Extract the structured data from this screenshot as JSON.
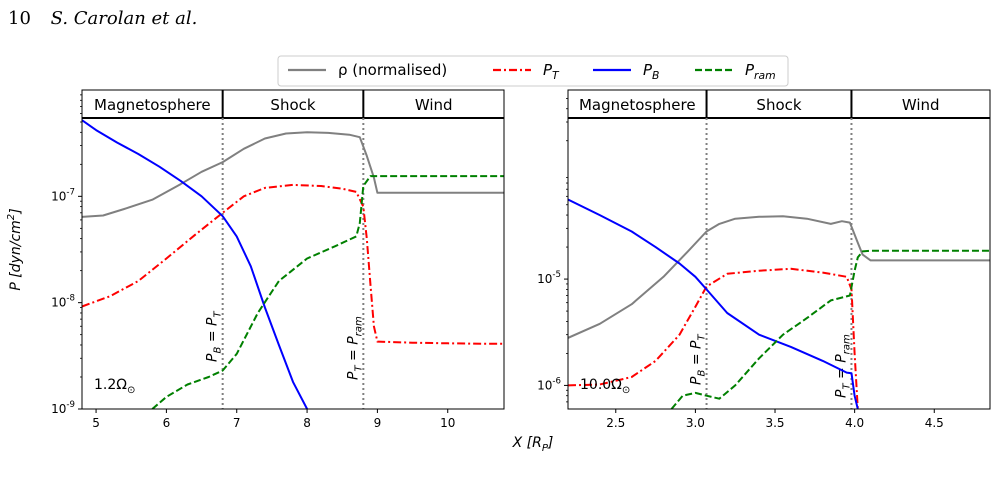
{
  "header": {
    "page_number": "10",
    "authors": "S. Carolan et al."
  },
  "x_axis_label": "X [R_P]",
  "legend": [
    {
      "key": "rho",
      "label": "ρ (normalised)",
      "color": "#808080",
      "dash": "solid"
    },
    {
      "key": "PT",
      "label": "P_T",
      "color": "#ff0000",
      "dash": "dashdot"
    },
    {
      "key": "PB",
      "label": "P_B",
      "color": "#0000ff",
      "dash": "solid"
    },
    {
      "key": "Pram",
      "label": "P_ram",
      "color": "#008000",
      "dash": "dashed"
    }
  ],
  "chart_data": [
    {
      "type": "line",
      "ylabel": "P [dyn/cm^2]",
      "ylog": true,
      "xlim": [
        4.8,
        10.8
      ],
      "ylim": [
        1e-09,
        1e-06
      ],
      "xticks": [
        5,
        6,
        7,
        8,
        9,
        10
      ],
      "yticks": [
        {
          "value": 1e-09,
          "label": "10^-9"
        },
        {
          "value": 1e-08,
          "label": "10^-8"
        },
        {
          "value": 1e-07,
          "label": "10^-7"
        }
      ],
      "regions": [
        {
          "label": "Magnetosphere",
          "from": 4.8,
          "to": 6.8
        },
        {
          "label": "Shock",
          "from": 6.8,
          "to": 8.8
        },
        {
          "label": "Wind",
          "from": 8.8,
          "to": 10.8
        }
      ],
      "vlines": [
        {
          "x": 6.8,
          "label": "P_B = P_T"
        },
        {
          "x": 8.8,
          "label": "P_T = P_ram"
        }
      ],
      "annotation": "1.2Ω_⊙",
      "series": [
        {
          "key": "rho",
          "x": [
            4.8,
            5.1,
            5.4,
            5.8,
            6.2,
            6.5,
            6.8,
            7.1,
            7.4,
            7.7,
            8.0,
            8.3,
            8.6,
            8.75,
            8.85,
            8.95,
            9.0,
            9.5,
            10.0,
            10.5,
            10.8
          ],
          "y": [
            6.4e-08,
            6.6e-08,
            7.6e-08,
            9.3e-08,
            1.3e-07,
            1.7e-07,
            2.1e-07,
            2.8e-07,
            3.5e-07,
            3.9e-07,
            4e-07,
            3.95e-07,
            3.8e-07,
            3.6e-07,
            2.4e-07,
            1.5e-07,
            1.08e-07,
            1.08e-07,
            1.08e-07,
            1.08e-07,
            1.08e-07
          ]
        },
        {
          "key": "PT",
          "x": [
            4.8,
            5.2,
            5.6,
            6.0,
            6.4,
            6.8,
            7.1,
            7.4,
            7.8,
            8.2,
            8.5,
            8.7,
            8.8,
            8.85,
            8.9,
            8.95,
            9.0,
            9.5,
            10.0,
            10.5,
            10.8
          ],
          "y": [
            9.2e-09,
            1.15e-08,
            1.6e-08,
            2.6e-08,
            4.3e-08,
            7e-08,
            1e-07,
            1.2e-07,
            1.28e-07,
            1.25e-07,
            1.18e-07,
            1.1e-07,
            8e-08,
            4e-08,
            1.5e-08,
            6e-09,
            4.3e-09,
            4.2e-09,
            4.15e-09,
            4.1e-09,
            4.1e-09
          ]
        },
        {
          "key": "PB",
          "x": [
            4.8,
            5.0,
            5.3,
            5.6,
            5.9,
            6.2,
            6.5,
            6.8,
            7.0,
            7.2,
            7.4,
            7.6,
            7.8,
            8.0
          ],
          "y": [
            5.2e-07,
            4.2e-07,
            3.2e-07,
            2.5e-07,
            1.9e-07,
            1.4e-07,
            1e-07,
            6.5e-08,
            4.2e-08,
            2.2e-08,
            9e-09,
            4e-09,
            1.8e-09,
            1e-09
          ]
        },
        {
          "key": "Pram",
          "x": [
            5.8,
            6.0,
            6.3,
            6.6,
            6.8,
            7.0,
            7.3,
            7.6,
            8.0,
            8.4,
            8.7,
            8.75,
            8.8,
            8.9,
            9.0,
            9.5,
            10.0,
            10.5,
            10.8
          ],
          "y": [
            1e-09,
            1.3e-09,
            1.7e-09,
            2e-09,
            2.3e-09,
            3.3e-09,
            8e-09,
            1.6e-08,
            2.6e-08,
            3.4e-08,
            4.2e-08,
            5.6e-08,
            1.25e-07,
            1.55e-07,
            1.55e-07,
            1.55e-07,
            1.55e-07,
            1.55e-07,
            1.55e-07
          ]
        }
      ]
    },
    {
      "type": "line",
      "ylog": true,
      "xlim": [
        2.2,
        4.85
      ],
      "ylim": [
        6e-07,
        0.0006
      ],
      "xticks": [
        2.5,
        3.0,
        3.5,
        4.0,
        4.5
      ],
      "yticks": [
        {
          "value": 1e-06,
          "label": "10^-6"
        },
        {
          "value": 1e-05,
          "label": "10^-5"
        }
      ],
      "regions": [
        {
          "label": "Magnetosphere",
          "from": 2.2,
          "to": 3.07
        },
        {
          "label": "Shock",
          "from": 3.07,
          "to": 3.98
        },
        {
          "label": "Wind",
          "from": 3.98,
          "to": 4.85
        }
      ],
      "vlines": [
        {
          "x": 3.07,
          "label": "P_B = P_T"
        },
        {
          "x": 3.98,
          "label": "P_T = P_ram"
        }
      ],
      "annotation": "10.0Ω_⊙",
      "series": [
        {
          "key": "rho",
          "x": [
            2.2,
            2.4,
            2.6,
            2.8,
            2.95,
            3.07,
            3.15,
            3.25,
            3.4,
            3.55,
            3.7,
            3.85,
            3.92,
            3.97,
            4.02,
            4.05,
            4.1,
            4.5,
            4.85
          ],
          "y": [
            2.8e-06,
            3.8e-06,
            5.8e-06,
            1.05e-05,
            1.8e-05,
            2.8e-05,
            3.3e-05,
            3.7e-05,
            3.85e-05,
            3.9e-05,
            3.7e-05,
            3.3e-05,
            3.5e-05,
            3.4e-05,
            2.2e-05,
            1.7e-05,
            1.5e-05,
            1.5e-05,
            1.5e-05
          ]
        },
        {
          "key": "PT",
          "x": [
            2.2,
            2.4,
            2.6,
            2.75,
            2.9,
            3.0,
            3.07,
            3.2,
            3.4,
            3.6,
            3.8,
            3.95,
            3.98,
            4.0,
            4.02
          ],
          "y": [
            1e-06,
            1.02e-06,
            1.2e-06,
            1.7e-06,
            3e-06,
            5.5e-06,
            8.5e-06,
            1.12e-05,
            1.2e-05,
            1.25e-05,
            1.15e-05,
            1.05e-05,
            8e-06,
            2e-06,
            6e-07
          ]
        },
        {
          "key": "PB",
          "x": [
            2.2,
            2.4,
            2.6,
            2.75,
            2.9,
            3.0,
            3.07,
            3.2,
            3.4,
            3.6,
            3.8,
            3.95,
            3.98,
            4.0,
            4.02
          ],
          "y": [
            5.6e-05,
            4e-05,
            2.8e-05,
            2e-05,
            1.4e-05,
            1.05e-05,
            8e-06,
            4.8e-06,
            3e-06,
            2.3e-06,
            1.7e-06,
            1.32e-06,
            1.3e-06,
            8e-07,
            6e-07
          ]
        },
        {
          "key": "Pram",
          "x": [
            2.85,
            2.92,
            3.0,
            3.07,
            3.15,
            3.25,
            3.4,
            3.55,
            3.7,
            3.85,
            3.97,
            4.0,
            4.02,
            4.05,
            4.1,
            4.5,
            4.85
          ],
          "y": [
            6e-07,
            8e-07,
            8.5e-07,
            8e-07,
            7.5e-07,
            1e-06,
            1.8e-06,
            3e-06,
            4.3e-06,
            6.3e-06,
            7e-06,
            1.2e-05,
            1.6e-05,
            1.82e-05,
            1.85e-05,
            1.85e-05,
            1.85e-05
          ]
        }
      ]
    }
  ]
}
